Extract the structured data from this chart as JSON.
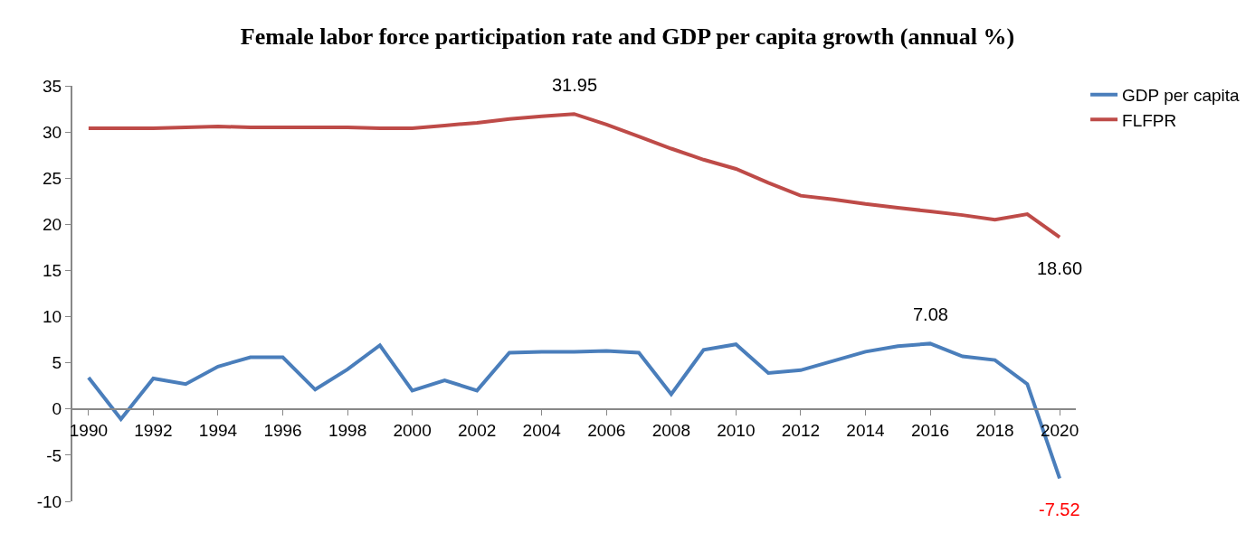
{
  "chart_data": {
    "type": "line",
    "title": "Female labor force participation rate and GDP per capita growth (annual %)",
    "categories": [
      "1990",
      null,
      "1992",
      null,
      "1994",
      null,
      "1996",
      null,
      "1998",
      null,
      "2000",
      null,
      "2002",
      null,
      "2004",
      null,
      "2006",
      null,
      "2008",
      null,
      "2010",
      null,
      "2012",
      null,
      "2014",
      null,
      "2016",
      null,
      "2018",
      null,
      "2020"
    ],
    "series": [
      {
        "name": "GDP per capita",
        "color": "#4a7ebb",
        "values": [
          3.4,
          -1.1,
          3.3,
          2.7,
          4.6,
          5.6,
          5.6,
          2.1,
          4.3,
          6.9,
          2.0,
          3.1,
          2.0,
          6.1,
          6.2,
          6.2,
          6.3,
          6.1,
          1.6,
          6.4,
          7.0,
          3.9,
          4.2,
          5.2,
          6.2,
          6.8,
          7.08,
          5.7,
          5.3,
          2.7,
          -7.52
        ],
        "value_labels": [
          null,
          null,
          null,
          null,
          null,
          null,
          null,
          null,
          null,
          null,
          null,
          null,
          null,
          null,
          null,
          null,
          null,
          null,
          null,
          null,
          null,
          null,
          null,
          null,
          null,
          null,
          "7.08",
          null,
          null,
          null,
          "-7.52"
        ]
      },
      {
        "name": "FLFPR",
        "color": "#be4b48",
        "values": [
          30.4,
          30.4,
          30.4,
          30.5,
          30.6,
          30.5,
          30.5,
          30.5,
          30.5,
          30.4,
          30.4,
          30.7,
          31.0,
          31.4,
          31.7,
          31.95,
          30.8,
          29.5,
          28.2,
          27.0,
          26.0,
          24.5,
          23.1,
          22.7,
          22.2,
          21.8,
          21.4,
          21.0,
          20.5,
          21.1,
          18.6
        ],
        "value_labels": [
          null,
          null,
          null,
          null,
          null,
          null,
          null,
          null,
          null,
          null,
          null,
          null,
          null,
          null,
          null,
          "31.95",
          null,
          null,
          null,
          null,
          null,
          null,
          null,
          null,
          null,
          null,
          null,
          null,
          null,
          null,
          "18.60"
        ]
      }
    ],
    "ylim": [
      -10,
      35
    ],
    "yticks": [
      -10,
      -5,
      0,
      5,
      10,
      15,
      20,
      25,
      30,
      35
    ],
    "legend": "top right",
    "marker": "none",
    "line_style": "solid"
  }
}
